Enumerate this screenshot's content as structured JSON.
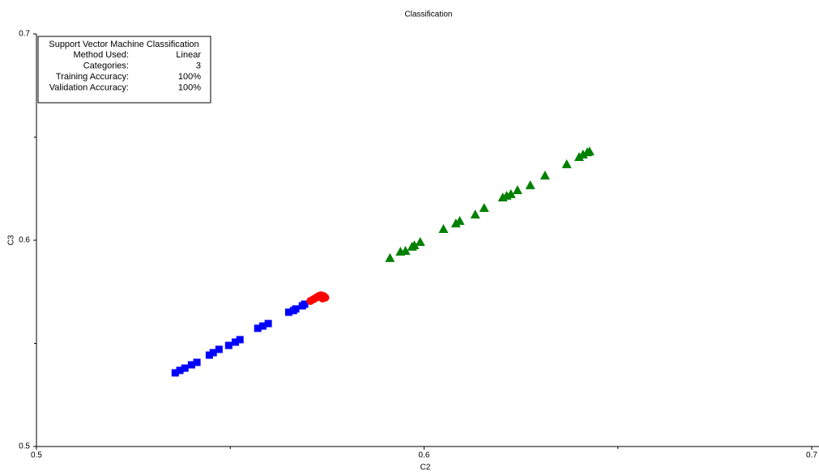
{
  "chart_data": {
    "type": "scatter",
    "title": "Classification",
    "x_label": "C2",
    "y_label": "C3",
    "xlim": [
      0.5,
      0.7
    ],
    "ylim": [
      0.5,
      0.7
    ],
    "xticks": [
      0.5,
      0.6,
      0.7
    ],
    "yticks": [
      0.5,
      0.6,
      0.7
    ],
    "x_minor_ticks": [
      0.55,
      0.65
    ],
    "y_minor_ticks": [
      0.55,
      0.65
    ],
    "series": [
      {
        "color": "#0000ff",
        "marker": "square",
        "x": [
          0.5358,
          0.537,
          0.5383,
          0.54,
          0.5414,
          0.5446,
          0.5456,
          0.5471,
          0.5496,
          0.5513,
          0.5525,
          0.5571,
          0.5584,
          0.5598,
          0.5651,
          0.5663,
          0.5669,
          0.5686,
          0.5692
        ],
        "values": [
          0.5357,
          0.5369,
          0.538,
          0.5396,
          0.5408,
          0.5443,
          0.5455,
          0.5471,
          0.549,
          0.5506,
          0.5518,
          0.5573,
          0.5584,
          0.5596,
          0.5651,
          0.5659,
          0.5667,
          0.5682,
          0.569
        ]
      },
      {
        "color": "#ff0000",
        "marker": "circle",
        "x": [
          0.5707,
          0.5715,
          0.5722,
          0.5728,
          0.5734,
          0.5741,
          0.5745,
          0.5738,
          0.5732
        ],
        "values": [
          0.5706,
          0.5714,
          0.5722,
          0.5729,
          0.5733,
          0.5729,
          0.5722,
          0.5718,
          0.5725
        ]
      },
      {
        "color": "#008000",
        "marker": "triangle",
        "x": [
          0.5912,
          0.5939,
          0.5952,
          0.5969,
          0.5975,
          0.599,
          0.605,
          0.6082,
          0.6092,
          0.6132,
          0.6155,
          0.6203,
          0.6213,
          0.6224,
          0.6241,
          0.6274,
          0.6312,
          0.6368,
          0.64,
          0.641,
          0.6421,
          0.6427
        ],
        "values": [
          0.5914,
          0.5945,
          0.5949,
          0.5969,
          0.5976,
          0.5992,
          0.6055,
          0.6082,
          0.6094,
          0.6125,
          0.6157,
          0.6208,
          0.6216,
          0.6224,
          0.6243,
          0.6267,
          0.6314,
          0.6369,
          0.6404,
          0.6416,
          0.6427,
          0.6431
        ]
      }
    ],
    "info_box": {
      "title": "Support Vector Machine Classification",
      "title_color": "#0000ff",
      "rows": [
        {
          "label": "Method Used:",
          "value": "Linear",
          "color": "#0000ff"
        },
        {
          "label": "Categories:",
          "value": "3",
          "color": "#0000ff"
        },
        {
          "label": "Training Accuracy:",
          "value": "100%",
          "color": "#0000ff"
        },
        {
          "label": "Validation Accuracy:",
          "value": "100%",
          "color": "#ff0000"
        }
      ]
    }
  }
}
